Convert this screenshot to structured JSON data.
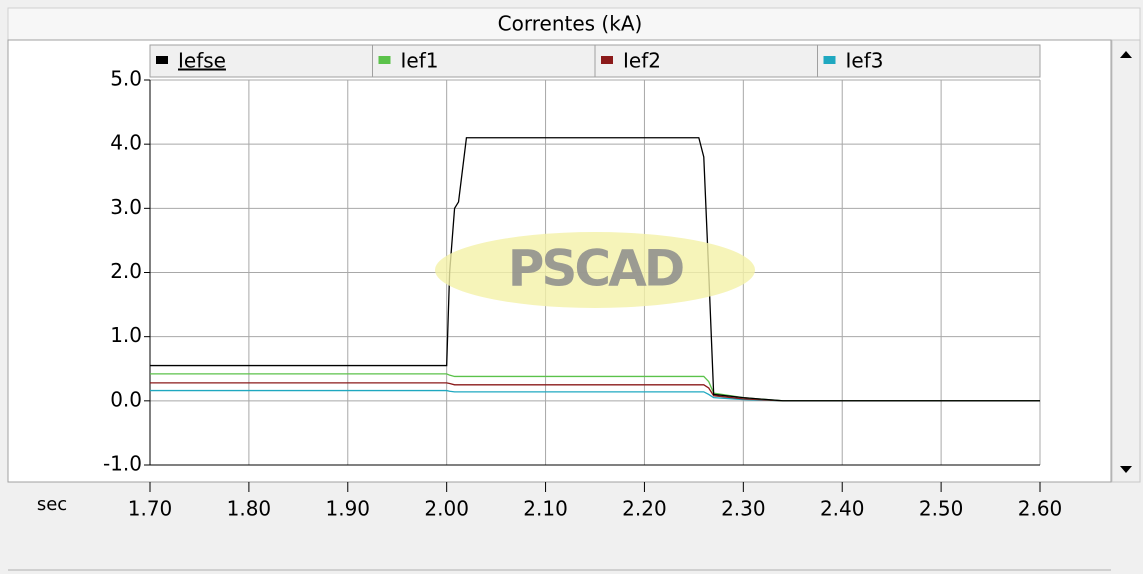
{
  "chart_data": {
    "type": "line",
    "title": "Correntes (kA)",
    "xlabel": "sec",
    "watermark": "PSCAD",
    "x": [
      1.7,
      2.0,
      2.003,
      2.008,
      2.012,
      2.02,
      2.255,
      2.26,
      2.265,
      2.27,
      2.3,
      2.34,
      2.6
    ],
    "series": [
      {
        "name": "Iefse",
        "color": "#000000",
        "values": [
          0.55,
          0.55,
          2.0,
          3.0,
          3.1,
          4.1,
          4.1,
          3.8,
          2.0,
          0.1,
          0.05,
          0.0,
          0.0
        ]
      },
      {
        "name": "Ief1",
        "color": "#5bc24a",
        "values": [
          0.42,
          0.42,
          0.4,
          0.38,
          0.38,
          0.38,
          0.38,
          0.38,
          0.3,
          0.12,
          0.05,
          0.0,
          0.0
        ]
      },
      {
        "name": "Ief2",
        "color": "#8b1a1a",
        "values": [
          0.28,
          0.28,
          0.27,
          0.25,
          0.25,
          0.25,
          0.25,
          0.25,
          0.2,
          0.08,
          0.03,
          0.0,
          0.0
        ]
      },
      {
        "name": "Ief3",
        "color": "#1fa8c0",
        "values": [
          0.16,
          0.16,
          0.15,
          0.14,
          0.14,
          0.14,
          0.14,
          0.14,
          0.1,
          0.05,
          0.02,
          0.0,
          0.0
        ]
      }
    ],
    "xlim": [
      1.7,
      2.6
    ],
    "xticks": [
      {
        "value": 1.7,
        "label": "1.70"
      },
      {
        "value": 1.8,
        "label": "1.80"
      },
      {
        "value": 1.9,
        "label": "1.90"
      },
      {
        "value": 2.0,
        "label": "2.00"
      },
      {
        "value": 2.1,
        "label": "2.10"
      },
      {
        "value": 2.2,
        "label": "2.20"
      },
      {
        "value": 2.3,
        "label": "2.30"
      },
      {
        "value": 2.4,
        "label": "2.40"
      },
      {
        "value": 2.5,
        "label": "2.50"
      },
      {
        "value": 2.6,
        "label": "2.60"
      }
    ],
    "ylim": [
      -1.0,
      5.0
    ],
    "yticks": [
      {
        "value": -1.0,
        "label": "-1.0"
      },
      {
        "value": 0.0,
        "label": "0.0"
      },
      {
        "value": 1.0,
        "label": "1.0"
      },
      {
        "value": 2.0,
        "label": "2.0"
      },
      {
        "value": 3.0,
        "label": "3.0"
      },
      {
        "value": 4.0,
        "label": "4.0"
      },
      {
        "value": 5.0,
        "label": "5.0"
      }
    ],
    "grid": true,
    "legend": "top"
  }
}
